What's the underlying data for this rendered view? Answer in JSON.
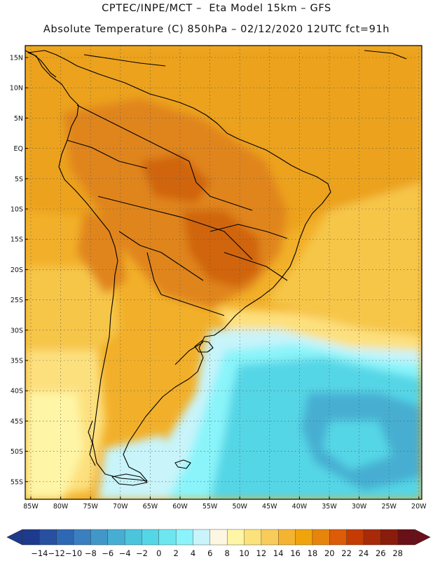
{
  "header": {
    "line1": "CPTEC/INPE/MCT –  Eta Model 15km – GFS",
    "line2": "Absolute Temperature (C) 850hPa – 02/12/2020 12UTC fct=91h"
  },
  "axes": {
    "lat_labels": [
      "15N",
      "10N",
      "5N",
      "EQ",
      "5S",
      "10S",
      "15S",
      "20S",
      "25S",
      "30S",
      "35S",
      "40S",
      "45S",
      "50S",
      "55S"
    ],
    "lon_labels": [
      "85W",
      "80W",
      "75W",
      "70W",
      "65W",
      "60W",
      "55W",
      "50W",
      "45W",
      "40W",
      "35W",
      "30W",
      "25W",
      "20W"
    ]
  },
  "colorbar": {
    "labels": [
      "-14",
      "-12",
      "-10",
      "-8",
      "-6",
      "-4",
      "-2",
      "0",
      "2",
      "4",
      "6",
      "8",
      "10",
      "12",
      "14",
      "16",
      "18",
      "20",
      "22",
      "24",
      "26",
      "28"
    ],
    "colors": [
      "#1e3a8c",
      "#2750a0",
      "#2e68b4",
      "#3a80c0",
      "#4198c8",
      "#46aed2",
      "#4cc4dc",
      "#55d6e6",
      "#6ee6f0",
      "#8af4fa",
      "#c8f4fa",
      "#fdf7e2",
      "#fef5a6",
      "#fce27a",
      "#f8cc5a",
      "#f4b432",
      "#f0a40c",
      "#e6840c",
      "#dc5c08",
      "#c43c04",
      "#a82a08",
      "#8a1c0c",
      "#6a1018"
    ]
  },
  "map": {
    "colors": {
      "land_warm": "#eca21a",
      "land_hot": "#e0851a",
      "land_hottest": "#d06510",
      "ocean_warm": "#f2b02a",
      "ocean_mid": "#f6c64a",
      "ocean_pale": "#fde07e",
      "ocean_light": "#fef5a6",
      "cold_1": "#c8f4fa",
      "cold_2": "#8af4fa",
      "cold_3": "#55d6e6",
      "cold_4": "#46aed2",
      "outline": "#000000"
    }
  }
}
